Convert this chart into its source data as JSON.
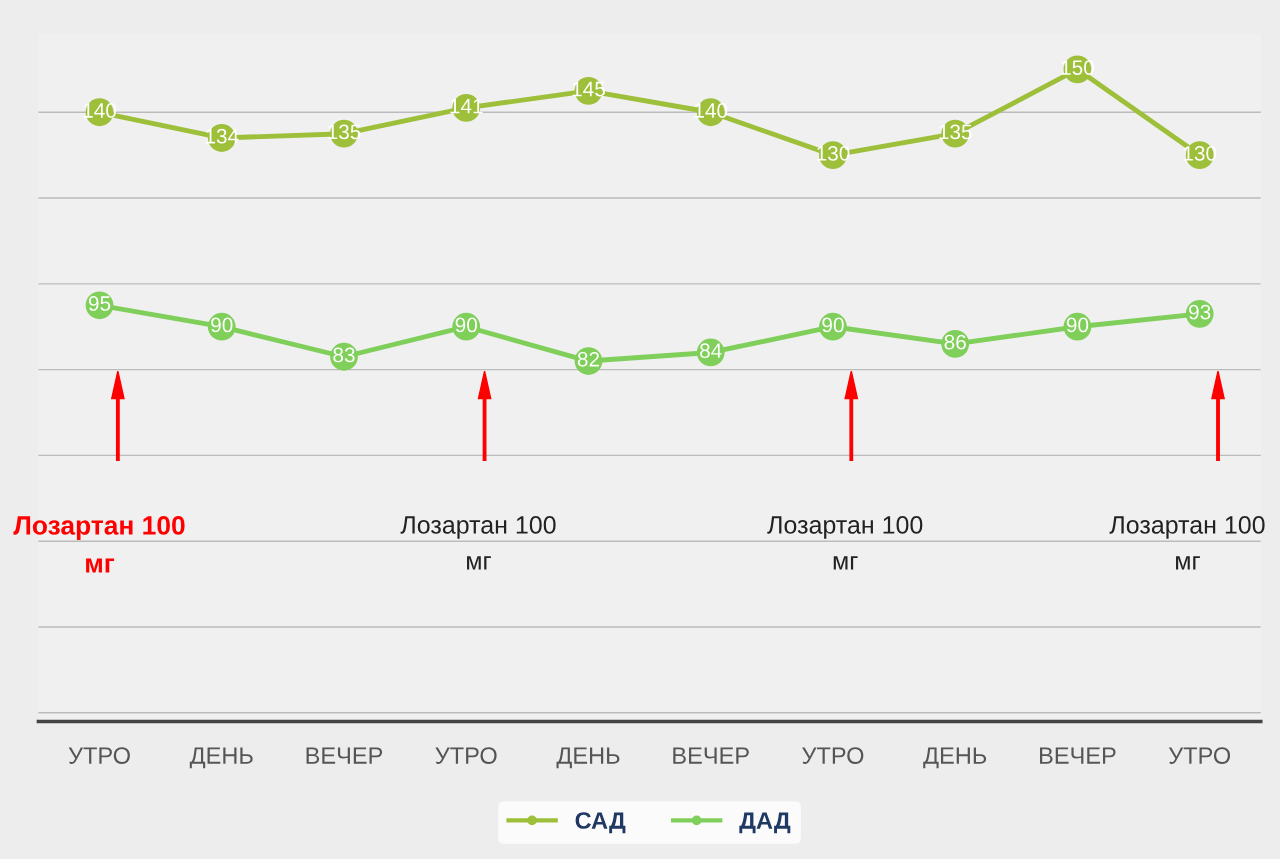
{
  "chart_data": {
    "type": "line",
    "categories": [
      "УТРО",
      "ДЕНЬ",
      "ВЕЧЕР",
      "УТРО",
      "ДЕНЬ",
      "ВЕЧЕР",
      "УТРО",
      "ДЕНЬ",
      "ВЕЧЕР",
      "УТРО"
    ],
    "series": [
      {
        "name": "САД",
        "color": "#9dbf3a",
        "values": [
          140,
          134,
          135,
          141,
          145,
          140,
          130,
          135,
          150,
          130
        ]
      },
      {
        "name": "ДАД",
        "color": "#7fcf5a",
        "values": [
          95,
          90,
          83,
          90,
          82,
          84,
          90,
          86,
          90,
          93
        ]
      }
    ],
    "tick_labels": "x",
    "grid": "y",
    "legend": "bottom",
    "marker": "circle",
    "line_style": "solid",
    "data_labels": true,
    "annotations": [
      "Лозартан 100 мг",
      "Лозартан 100 мг",
      "Лозартан 100 мг",
      "Лозартан 100 мг"
    ]
  }
}
